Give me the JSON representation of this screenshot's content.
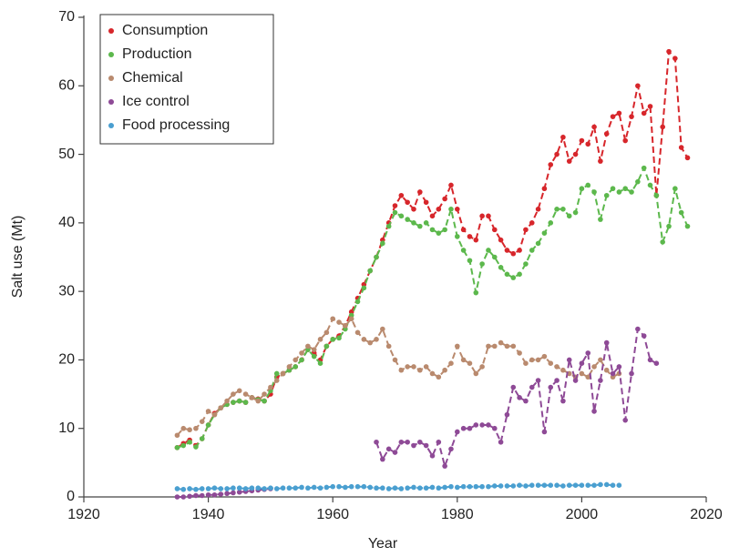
{
  "chart_data": {
    "type": "scatter",
    "xlabel": "Year",
    "ylabel": "Salt use (Mt)",
    "xlim": [
      1920,
      2020
    ],
    "xticks": [
      1920,
      1940,
      1960,
      1980,
      2000,
      2020
    ],
    "ylim": [
      0,
      70
    ],
    "yticks": [
      0,
      10,
      20,
      30,
      40,
      50,
      60,
      70
    ],
    "grid": false,
    "legend": "upper left",
    "line_style": "dashed",
    "x": [
      1935,
      1936,
      1937,
      1938,
      1939,
      1940,
      1941,
      1942,
      1943,
      1944,
      1945,
      1946,
      1947,
      1948,
      1949,
      1950,
      1951,
      1952,
      1953,
      1954,
      1955,
      1956,
      1957,
      1958,
      1959,
      1960,
      1961,
      1962,
      1963,
      1964,
      1965,
      1966,
      1967,
      1968,
      1969,
      1970,
      1971,
      1972,
      1973,
      1974,
      1975,
      1976,
      1977,
      1978,
      1979,
      1980,
      1981,
      1982,
      1983,
      1984,
      1985,
      1986,
      1987,
      1988,
      1989,
      1990,
      1991,
      1992,
      1993,
      1994,
      1995,
      1996,
      1997,
      1998,
      1999,
      2000,
      2001,
      2002,
      2003,
      2004,
      2005,
      2006,
      2007,
      2008,
      2009,
      2010,
      2011,
      2012,
      2013,
      2014,
      2015,
      2016,
      2017
    ],
    "series": [
      {
        "name": "Consumption",
        "color": "#d7262b",
        "values": [
          7.2,
          7.8,
          8.3,
          7.5,
          8.5,
          10.5,
          12.2,
          13,
          13.5,
          13.8,
          14,
          13.8,
          14.5,
          14.3,
          14,
          15,
          17.5,
          18,
          18.5,
          19,
          20,
          21.5,
          21,
          20,
          22,
          23,
          23.5,
          25,
          27,
          29,
          31,
          33,
          35,
          37.5,
          40,
          42.5,
          44,
          43,
          42,
          44.5,
          43,
          41,
          42,
          43.5,
          45.5,
          42,
          39,
          38,
          37.5,
          41,
          41,
          39,
          37.5,
          36,
          35.5,
          36,
          39,
          40,
          42,
          45,
          48.5,
          50,
          52.5,
          49,
          50,
          52,
          51.5,
          54,
          49,
          53,
          55.5,
          56,
          52,
          55.5,
          60,
          56,
          57,
          44,
          54,
          65,
          64,
          51,
          49.5
        ]
      },
      {
        "name": "Production",
        "color": "#5cb84c",
        "values": [
          7.2,
          7.5,
          8,
          7.3,
          8.5,
          10.5,
          12,
          13,
          13.5,
          13.8,
          14,
          13.8,
          14.5,
          14.2,
          14,
          15.5,
          18,
          18,
          18.5,
          19,
          20,
          21.5,
          20.5,
          19.5,
          22,
          23,
          23.2,
          24.5,
          26.5,
          28.5,
          30.5,
          33,
          35,
          37,
          39.5,
          41.5,
          41,
          40.5,
          40,
          39.5,
          40,
          39,
          38.5,
          39,
          42,
          38,
          36,
          34.5,
          29.8,
          34,
          36,
          35,
          33.5,
          32.5,
          32,
          32.5,
          34,
          36,
          37,
          38.5,
          40,
          42,
          42,
          41,
          41.5,
          45,
          45.5,
          44.5,
          40.5,
          44,
          45,
          44.5,
          45,
          44.5,
          46,
          48,
          45.5,
          44,
          37.2,
          39.5,
          45,
          41.5,
          39.5
        ]
      },
      {
        "name": "Chemical",
        "color": "#b98a6e",
        "values": [
          9,
          10,
          9.8,
          10,
          11,
          12.5,
          12,
          13,
          14,
          15,
          15.5,
          15,
          14.5,
          14,
          15,
          16,
          17,
          18,
          19,
          20,
          21,
          22,
          21.5,
          23,
          24,
          26,
          25.5,
          25,
          26,
          24,
          23,
          22.5,
          23,
          24.5,
          22,
          20,
          18.5,
          19,
          19,
          18.5,
          19,
          18,
          17.5,
          18.5,
          19.5,
          22,
          20,
          19.5,
          18,
          19,
          22,
          22,
          22.5,
          22,
          22,
          21,
          19.5,
          20,
          20,
          20.5,
          19.5,
          19,
          18.5,
          18,
          17.5,
          18,
          17.5,
          19,
          20,
          18.5,
          17.5,
          18,
          null,
          null,
          null,
          null,
          null,
          null,
          null,
          null,
          null,
          null,
          null
        ]
      },
      {
        "name": "Ice control",
        "color": "#8e4a96",
        "values": [
          0,
          0,
          0.1,
          0.2,
          0.2,
          0.3,
          0.3,
          0.4,
          0.5,
          0.6,
          0.7,
          0.8,
          0.9,
          1,
          1.1,
          1.2,
          null,
          null,
          null,
          null,
          null,
          null,
          null,
          null,
          null,
          null,
          null,
          null,
          null,
          null,
          null,
          null,
          8,
          5.5,
          7,
          6.5,
          8,
          8,
          7.5,
          8,
          7.5,
          6,
          8,
          4.5,
          7,
          9.5,
          10,
          10,
          10.5,
          10.5,
          10.5,
          10,
          8,
          12,
          16,
          14.5,
          14,
          16,
          17,
          9.5,
          16,
          17,
          14,
          20,
          17,
          19.5,
          21,
          12.5,
          17,
          22.5,
          18,
          19,
          11.2,
          18,
          24.5,
          23.5,
          20,
          19.5,
          null,
          null,
          null,
          null,
          null
        ]
      },
      {
        "name": "Food processing",
        "color": "#4a9fd0",
        "values": [
          1.2,
          1.1,
          1.2,
          1.1,
          1.2,
          1.2,
          1.3,
          1.2,
          1.2,
          1.3,
          1.3,
          1.2,
          1.3,
          1.3,
          1.2,
          1.3,
          1.2,
          1.3,
          1.3,
          1.3,
          1.4,
          1.3,
          1.4,
          1.3,
          1.4,
          1.5,
          1.5,
          1.4,
          1.5,
          1.5,
          1.5,
          1.4,
          1.3,
          1.3,
          1.2,
          1.3,
          1.2,
          1.3,
          1.4,
          1.3,
          1.3,
          1.4,
          1.3,
          1.4,
          1.5,
          1.4,
          1.5,
          1.5,
          1.5,
          1.5,
          1.5,
          1.6,
          1.6,
          1.6,
          1.6,
          1.7,
          1.6,
          1.7,
          1.7,
          1.7,
          1.7,
          1.7,
          1.6,
          1.7,
          1.7,
          1.7,
          1.7,
          1.7,
          1.8,
          1.8,
          1.7,
          1.7,
          null,
          null,
          null,
          null,
          null,
          null,
          null,
          null,
          null,
          null,
          null
        ]
      }
    ]
  }
}
